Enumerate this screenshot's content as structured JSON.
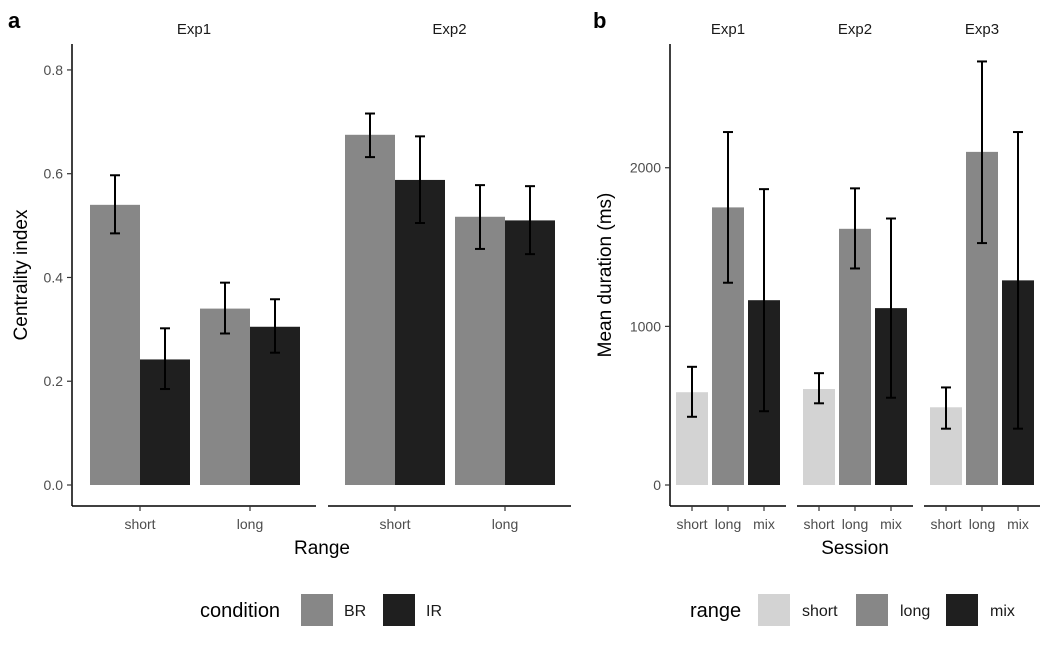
{
  "chart_data": [
    {
      "type": "bar",
      "panel_label": "a",
      "xlabel": "Range",
      "ylabel": "Centrality index",
      "ylim": [
        0,
        0.85
      ],
      "yticks": [
        0.0,
        0.2,
        0.4,
        0.6,
        0.8
      ],
      "ytick_labels": [
        "0.0",
        "0.2",
        "0.4",
        "0.6",
        "0.8"
      ],
      "grid": false,
      "legend": {
        "title": "condition",
        "position": "bottom",
        "entries": [
          {
            "label": "BR",
            "color": "#878787"
          },
          {
            "label": "IR",
            "color": "#1f1f1f"
          }
        ]
      },
      "facets": [
        {
          "title": "Exp1",
          "categories": [
            "short",
            "long"
          ],
          "series": [
            {
              "name": "BR",
              "color": "#878787",
              "values": [
                0.54,
                0.34
              ],
              "err_low": [
                0.485,
                0.292
              ],
              "err_high": [
                0.597,
                0.39
              ]
            },
            {
              "name": "IR",
              "color": "#1f1f1f",
              "values": [
                0.242,
                0.305
              ],
              "err_low": [
                0.185,
                0.255
              ],
              "err_high": [
                0.302,
                0.358
              ]
            }
          ]
        },
        {
          "title": "Exp2",
          "categories": [
            "short",
            "long"
          ],
          "series": [
            {
              "name": "BR",
              "color": "#878787",
              "values": [
                0.675,
                0.517
              ],
              "err_low": [
                0.632,
                0.455
              ],
              "err_high": [
                0.716,
                0.578
              ]
            },
            {
              "name": "IR",
              "color": "#1f1f1f",
              "values": [
                0.588,
                0.51
              ],
              "err_low": [
                0.505,
                0.445
              ],
              "err_high": [
                0.672,
                0.576
              ]
            }
          ]
        }
      ]
    },
    {
      "type": "bar",
      "panel_label": "b",
      "xlabel": "Session",
      "ylabel": "Mean duration (ms)",
      "ylim": [
        0,
        2780
      ],
      "yticks": [
        0,
        1000,
        2000
      ],
      "ytick_labels": [
        "0",
        "1000",
        "2000"
      ],
      "grid": false,
      "legend": {
        "title": "range",
        "position": "bottom",
        "entries": [
          {
            "label": "short",
            "color": "#d3d3d3"
          },
          {
            "label": "long",
            "color": "#878787"
          },
          {
            "label": "mix",
            "color": "#1f1f1f"
          }
        ]
      },
      "facets": [
        {
          "title": "Exp1",
          "categories": [
            "short",
            "long",
            "mix"
          ],
          "values": [
            585,
            1750,
            1165
          ],
          "err_low": [
            430,
            1275,
            465
          ],
          "err_high": [
            745,
            2225,
            1865
          ],
          "colors": [
            "#d3d3d3",
            "#878787",
            "#1f1f1f"
          ]
        },
        {
          "title": "Exp2",
          "categories": [
            "short",
            "long",
            "mix"
          ],
          "values": [
            605,
            1615,
            1115
          ],
          "err_low": [
            515,
            1365,
            550
          ],
          "err_high": [
            705,
            1870,
            1680
          ],
          "colors": [
            "#d3d3d3",
            "#878787",
            "#1f1f1f"
          ]
        },
        {
          "title": "Exp3",
          "categories": [
            "short",
            "long",
            "mix"
          ],
          "values": [
            490,
            2100,
            1290
          ],
          "err_low": [
            355,
            1525,
            355
          ],
          "err_high": [
            615,
            2670,
            2225
          ],
          "colors": [
            "#d3d3d3",
            "#878787",
            "#1f1f1f"
          ]
        }
      ]
    }
  ]
}
